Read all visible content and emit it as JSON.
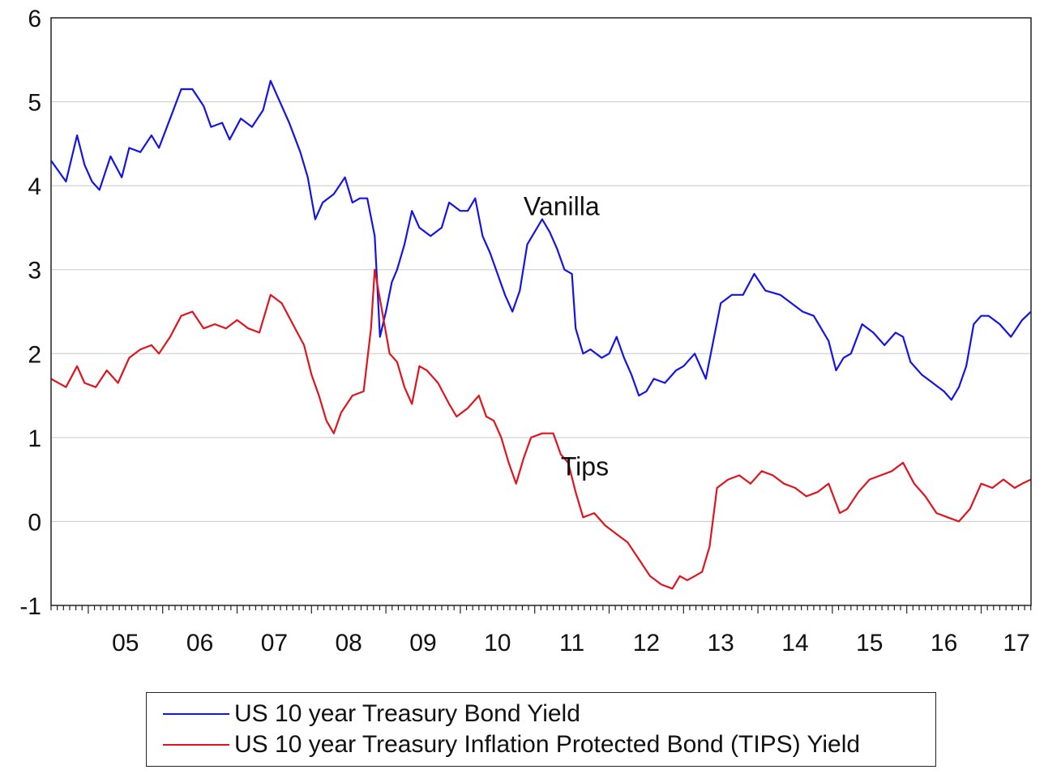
{
  "chart_data": {
    "type": "line",
    "title": "",
    "xlabel": "",
    "ylabel": "",
    "xlim": [
      2004.5,
      2017.67
    ],
    "ylim": [
      -1,
      6
    ],
    "yticks": [
      -1,
      0,
      1,
      2,
      3,
      4,
      5,
      6
    ],
    "xtick_labels": [
      {
        "label": "05",
        "x": 2005.0
      },
      {
        "label": "06",
        "x": 2006.0
      },
      {
        "label": "07",
        "x": 2007.0
      },
      {
        "label": "08",
        "x": 2008.0
      },
      {
        "label": "09",
        "x": 2009.0
      },
      {
        "label": "10",
        "x": 2010.0
      },
      {
        "label": "11",
        "x": 2011.0
      },
      {
        "label": "12",
        "x": 2012.0
      },
      {
        "label": "13",
        "x": 2013.0
      },
      {
        "label": "14",
        "x": 2014.0
      },
      {
        "label": "15",
        "x": 2015.0
      },
      {
        "label": "16",
        "x": 2016.0
      },
      {
        "label": "17",
        "x": 2017.0
      }
    ],
    "grid": true,
    "legend_position": "bottom",
    "annotations": [
      {
        "text": "Vanilla",
        "x": 2010.85,
        "y": 3.65
      },
      {
        "text": "Tips",
        "x": 2011.35,
        "y": 0.55
      }
    ],
    "series": [
      {
        "name": "US 10 year Treasury Bond Yield",
        "color": "#1414e6",
        "points": [
          [
            2004.5,
            4.3
          ],
          [
            2004.7,
            4.05
          ],
          [
            2004.85,
            4.6
          ],
          [
            2004.95,
            4.25
          ],
          [
            2005.05,
            4.05
          ],
          [
            2005.15,
            3.95
          ],
          [
            2005.3,
            4.35
          ],
          [
            2005.45,
            4.1
          ],
          [
            2005.55,
            4.45
          ],
          [
            2005.7,
            4.4
          ],
          [
            2005.85,
            4.6
          ],
          [
            2005.95,
            4.45
          ],
          [
            2006.1,
            4.8
          ],
          [
            2006.25,
            5.15
          ],
          [
            2006.4,
            5.15
          ],
          [
            2006.55,
            4.95
          ],
          [
            2006.65,
            4.7
          ],
          [
            2006.8,
            4.75
          ],
          [
            2006.9,
            4.55
          ],
          [
            2007.05,
            4.8
          ],
          [
            2007.2,
            4.7
          ],
          [
            2007.35,
            4.9
          ],
          [
            2007.45,
            5.25
          ],
          [
            2007.55,
            5.05
          ],
          [
            2007.7,
            4.75
          ],
          [
            2007.85,
            4.4
          ],
          [
            2007.95,
            4.1
          ],
          [
            2008.05,
            3.6
          ],
          [
            2008.15,
            3.8
          ],
          [
            2008.3,
            3.9
          ],
          [
            2008.45,
            4.1
          ],
          [
            2008.55,
            3.8
          ],
          [
            2008.65,
            3.85
          ],
          [
            2008.75,
            3.85
          ],
          [
            2008.85,
            3.4
          ],
          [
            2008.92,
            2.2
          ],
          [
            2009.0,
            2.5
          ],
          [
            2009.08,
            2.85
          ],
          [
            2009.15,
            3.0
          ],
          [
            2009.25,
            3.3
          ],
          [
            2009.35,
            3.7
          ],
          [
            2009.45,
            3.5
          ],
          [
            2009.6,
            3.4
          ],
          [
            2009.75,
            3.5
          ],
          [
            2009.85,
            3.8
          ],
          [
            2010.0,
            3.7
          ],
          [
            2010.1,
            3.7
          ],
          [
            2010.2,
            3.85
          ],
          [
            2010.3,
            3.4
          ],
          [
            2010.4,
            3.2
          ],
          [
            2010.5,
            2.95
          ],
          [
            2010.6,
            2.7
          ],
          [
            2010.7,
            2.5
          ],
          [
            2010.8,
            2.75
          ],
          [
            2010.9,
            3.3
          ],
          [
            2011.0,
            3.45
          ],
          [
            2011.1,
            3.6
          ],
          [
            2011.2,
            3.45
          ],
          [
            2011.3,
            3.25
          ],
          [
            2011.4,
            3.0
          ],
          [
            2011.5,
            2.95
          ],
          [
            2011.55,
            2.3
          ],
          [
            2011.65,
            2.0
          ],
          [
            2011.75,
            2.05
          ],
          [
            2011.9,
            1.95
          ],
          [
            2012.0,
            2.0
          ],
          [
            2012.1,
            2.2
          ],
          [
            2012.2,
            1.95
          ],
          [
            2012.3,
            1.75
          ],
          [
            2012.4,
            1.5
          ],
          [
            2012.5,
            1.55
          ],
          [
            2012.6,
            1.7
          ],
          [
            2012.75,
            1.65
          ],
          [
            2012.9,
            1.8
          ],
          [
            2013.0,
            1.85
          ],
          [
            2013.15,
            2.0
          ],
          [
            2013.3,
            1.7
          ],
          [
            2013.4,
            2.15
          ],
          [
            2013.5,
            2.6
          ],
          [
            2013.65,
            2.7
          ],
          [
            2013.8,
            2.7
          ],
          [
            2013.95,
            2.95
          ],
          [
            2014.1,
            2.75
          ],
          [
            2014.3,
            2.7
          ],
          [
            2014.45,
            2.6
          ],
          [
            2014.6,
            2.5
          ],
          [
            2014.75,
            2.45
          ],
          [
            2014.85,
            2.3
          ],
          [
            2014.95,
            2.15
          ],
          [
            2015.05,
            1.8
          ],
          [
            2015.15,
            1.95
          ],
          [
            2015.25,
            2.0
          ],
          [
            2015.4,
            2.35
          ],
          [
            2015.55,
            2.25
          ],
          [
            2015.7,
            2.1
          ],
          [
            2015.85,
            2.25
          ],
          [
            2015.95,
            2.2
          ],
          [
            2016.05,
            1.9
          ],
          [
            2016.2,
            1.75
          ],
          [
            2016.35,
            1.65
          ],
          [
            2016.5,
            1.55
          ],
          [
            2016.6,
            1.45
          ],
          [
            2016.7,
            1.6
          ],
          [
            2016.8,
            1.85
          ],
          [
            2016.9,
            2.35
          ],
          [
            2017.0,
            2.45
          ],
          [
            2017.1,
            2.45
          ],
          [
            2017.25,
            2.35
          ],
          [
            2017.4,
            2.2
          ],
          [
            2017.55,
            2.4
          ],
          [
            2017.67,
            2.5
          ]
        ]
      },
      {
        "name": "US 10 year Treasury Inflation Protected Bond (TIPS) Yield",
        "color": "#e0141e",
        "points": [
          [
            2004.5,
            1.7
          ],
          [
            2004.7,
            1.6
          ],
          [
            2004.85,
            1.85
          ],
          [
            2004.95,
            1.65
          ],
          [
            2005.1,
            1.6
          ],
          [
            2005.25,
            1.8
          ],
          [
            2005.4,
            1.65
          ],
          [
            2005.55,
            1.95
          ],
          [
            2005.7,
            2.05
          ],
          [
            2005.85,
            2.1
          ],
          [
            2005.95,
            2.0
          ],
          [
            2006.1,
            2.2
          ],
          [
            2006.25,
            2.45
          ],
          [
            2006.4,
            2.5
          ],
          [
            2006.55,
            2.3
          ],
          [
            2006.7,
            2.35
          ],
          [
            2006.85,
            2.3
          ],
          [
            2007.0,
            2.4
          ],
          [
            2007.15,
            2.3
          ],
          [
            2007.3,
            2.25
          ],
          [
            2007.45,
            2.7
          ],
          [
            2007.6,
            2.6
          ],
          [
            2007.75,
            2.35
          ],
          [
            2007.9,
            2.1
          ],
          [
            2008.0,
            1.75
          ],
          [
            2008.1,
            1.5
          ],
          [
            2008.2,
            1.2
          ],
          [
            2008.3,
            1.05
          ],
          [
            2008.4,
            1.3
          ],
          [
            2008.55,
            1.5
          ],
          [
            2008.7,
            1.55
          ],
          [
            2008.8,
            2.3
          ],
          [
            2008.85,
            3.0
          ],
          [
            2008.95,
            2.5
          ],
          [
            2009.05,
            2.0
          ],
          [
            2009.15,
            1.9
          ],
          [
            2009.25,
            1.6
          ],
          [
            2009.35,
            1.4
          ],
          [
            2009.45,
            1.85
          ],
          [
            2009.55,
            1.8
          ],
          [
            2009.7,
            1.65
          ],
          [
            2009.85,
            1.4
          ],
          [
            2009.95,
            1.25
          ],
          [
            2010.1,
            1.35
          ],
          [
            2010.25,
            1.5
          ],
          [
            2010.35,
            1.25
          ],
          [
            2010.45,
            1.2
          ],
          [
            2010.55,
            1.0
          ],
          [
            2010.65,
            0.7
          ],
          [
            2010.75,
            0.45
          ],
          [
            2010.85,
            0.75
          ],
          [
            2010.95,
            1.0
          ],
          [
            2011.1,
            1.05
          ],
          [
            2011.25,
            1.05
          ],
          [
            2011.35,
            0.8
          ],
          [
            2011.45,
            0.7
          ],
          [
            2011.55,
            0.35
          ],
          [
            2011.65,
            0.05
          ],
          [
            2011.8,
            0.1
          ],
          [
            2011.95,
            -0.05
          ],
          [
            2012.1,
            -0.15
          ],
          [
            2012.25,
            -0.25
          ],
          [
            2012.4,
            -0.45
          ],
          [
            2012.55,
            -0.65
          ],
          [
            2012.7,
            -0.75
          ],
          [
            2012.85,
            -0.8
          ],
          [
            2012.95,
            -0.65
          ],
          [
            2013.05,
            -0.7
          ],
          [
            2013.15,
            -0.65
          ],
          [
            2013.25,
            -0.6
          ],
          [
            2013.35,
            -0.3
          ],
          [
            2013.45,
            0.4
          ],
          [
            2013.6,
            0.5
          ],
          [
            2013.75,
            0.55
          ],
          [
            2013.9,
            0.45
          ],
          [
            2014.05,
            0.6
          ],
          [
            2014.2,
            0.55
          ],
          [
            2014.35,
            0.45
          ],
          [
            2014.5,
            0.4
          ],
          [
            2014.65,
            0.3
          ],
          [
            2014.8,
            0.35
          ],
          [
            2014.95,
            0.45
          ],
          [
            2015.1,
            0.1
          ],
          [
            2015.2,
            0.15
          ],
          [
            2015.35,
            0.35
          ],
          [
            2015.5,
            0.5
          ],
          [
            2015.65,
            0.55
          ],
          [
            2015.8,
            0.6
          ],
          [
            2015.95,
            0.7
          ],
          [
            2016.1,
            0.45
          ],
          [
            2016.25,
            0.3
          ],
          [
            2016.4,
            0.1
          ],
          [
            2016.55,
            0.05
          ],
          [
            2016.7,
            0.0
          ],
          [
            2016.85,
            0.15
          ],
          [
            2017.0,
            0.45
          ],
          [
            2017.15,
            0.4
          ],
          [
            2017.3,
            0.5
          ],
          [
            2017.45,
            0.4
          ],
          [
            2017.55,
            0.45
          ],
          [
            2017.67,
            0.5
          ]
        ]
      }
    ]
  },
  "legend": {
    "items": [
      {
        "label": "US 10 year Treasury Bond Yield",
        "color": "#1414e6"
      },
      {
        "label": "US 10 year Treasury Inflation Protected Bond (TIPS) Yield",
        "color": "#e0141e"
      }
    ]
  }
}
